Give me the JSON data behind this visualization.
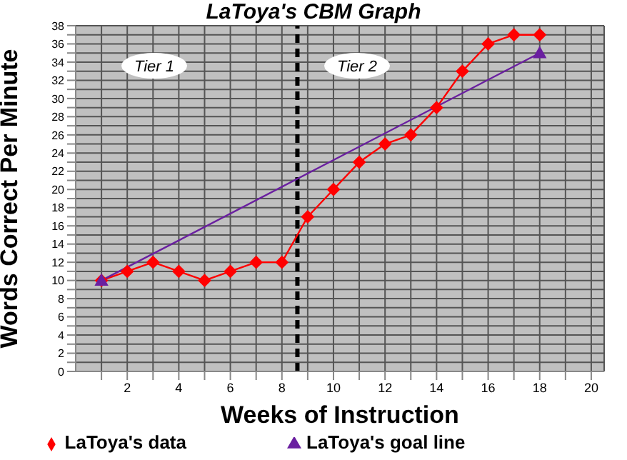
{
  "chart_data": {
    "type": "line",
    "title": "LaToya's CBM Graph",
    "xlabel": "Weeks of Instruction",
    "ylabel": "Words Correct Per Minute",
    "series": [
      {
        "name": "LaToya's data",
        "color": "#ff0000",
        "marker": "diamond",
        "x": [
          1,
          2,
          3,
          4,
          5,
          6,
          7,
          8,
          9,
          10,
          11,
          12,
          13,
          14,
          15,
          16,
          17,
          18
        ],
        "values": [
          10,
          11,
          12,
          11,
          10,
          11,
          12,
          12,
          17,
          20,
          23,
          25,
          26,
          29,
          33,
          36,
          37,
          37
        ]
      },
      {
        "name": "LaToya's goal line",
        "color": "#6a1fa0",
        "marker": "triangle",
        "x": [
          1,
          18
        ],
        "values": [
          10,
          35
        ]
      }
    ],
    "xlim": [
      0,
      20.5
    ],
    "xticks": [
      {
        "value": 1,
        "label": null
      },
      2,
      {
        "value": 3,
        "label": null
      },
      4,
      {
        "value": 5,
        "label": null
      },
      6,
      {
        "value": 7,
        "label": null
      },
      8,
      {
        "value": 9,
        "label": null
      },
      10,
      {
        "value": 11,
        "label": null
      },
      12,
      {
        "value": 13,
        "label": null
      },
      14,
      {
        "value": 15,
        "label": null
      },
      16,
      {
        "value": 17,
        "label": null
      },
      18,
      {
        "value": 19,
        "label": null
      },
      20
    ],
    "ylim": [
      0,
      38
    ],
    "yticks": [
      0,
      {
        "value": 1,
        "label": null
      },
      2,
      {
        "value": 3,
        "label": null
      },
      4,
      {
        "value": 5,
        "label": null
      },
      6,
      {
        "value": 7,
        "label": null
      },
      8,
      {
        "value": 9,
        "label": null
      },
      10,
      {
        "value": 11,
        "label": null
      },
      12,
      {
        "value": 13,
        "label": null
      },
      14,
      {
        "value": 15,
        "label": null
      },
      16,
      {
        "value": 17,
        "label": null
      },
      18,
      {
        "value": 19,
        "label": null
      },
      20,
      {
        "value": 21,
        "label": null
      },
      22,
      {
        "value": 23,
        "label": null
      },
      24,
      {
        "value": 25,
        "label": null
      },
      26,
      {
        "value": 27,
        "label": null
      },
      28,
      {
        "value": 29,
        "label": null
      },
      30,
      {
        "value": 31,
        "label": null
      },
      32,
      {
        "value": 33,
        "label": null
      },
      34,
      {
        "value": 35,
        "label": null
      },
      36,
      {
        "value": 37,
        "label": null
      },
      38
    ],
    "ref_lines": [
      {
        "axis": "x",
        "value": 8.6,
        "color": "#000000",
        "line_style": "dashed"
      }
    ],
    "annotations": [
      "Tier 1",
      "Tier 2"
    ],
    "grid": true,
    "legend": "bottom",
    "line_style": "solid"
  }
}
